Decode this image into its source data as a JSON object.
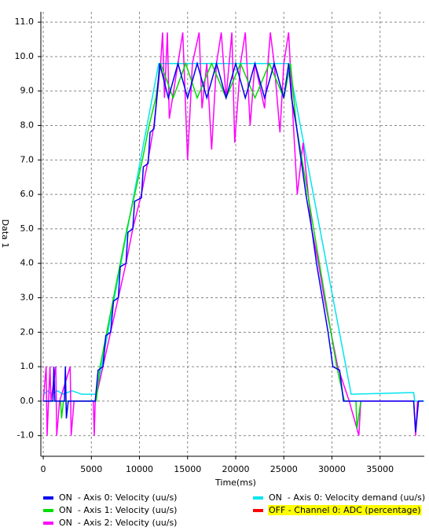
{
  "chart_data": {
    "type": "line",
    "xlabel": "Time(ms)",
    "ylabel": "Data 1",
    "xlim": [
      -250,
      39600
    ],
    "ylim": [
      -1.6,
      11.3
    ],
    "xticks": [
      0,
      5000,
      10000,
      15000,
      20000,
      25000,
      30000,
      35000
    ],
    "yticks": [
      {
        "value": -1,
        "label": "-1.0"
      },
      {
        "value": 0,
        "label": "0.0"
      },
      {
        "value": 1,
        "label": "1.0"
      },
      {
        "value": 2,
        "label": "2.0"
      },
      {
        "value": 3,
        "label": "3.0"
      },
      {
        "value": 4,
        "label": "4.0"
      },
      {
        "value": 5,
        "label": "5.0"
      },
      {
        "value": 6,
        "label": "6.0"
      },
      {
        "value": 7,
        "label": "7.0"
      },
      {
        "value": 8,
        "label": "8.0"
      },
      {
        "value": 9,
        "label": "9.0"
      },
      {
        "value": 10,
        "label": "10.0"
      },
      {
        "value": 11,
        "label": "11.0"
      }
    ],
    "grid": true,
    "series": [
      {
        "name": "ON  - Axis 0: Velocity demand (uu/s)",
        "color": "#00e5ee",
        "x": [
          0,
          500,
          800,
          1500,
          2000,
          3000,
          4000,
          5500,
          12000,
          25500,
          32000,
          38500,
          38600,
          39600
        ],
        "values": [
          0.2,
          0.3,
          0.2,
          0.3,
          0.2,
          0.3,
          0.2,
          0.2,
          9.8,
          9.8,
          0.2,
          0.25,
          0,
          0
        ]
      },
      {
        "name": "ON  - Axis 2: Velocity (uu/s)",
        "color": "#ff00ff",
        "x": [
          0,
          300,
          400,
          700,
          800,
          1300,
          1400,
          1700,
          2800,
          2900,
          3200,
          5200,
          5300,
          5400,
          6200,
          7000,
          7800,
          8600,
          9300,
          10200,
          10900,
          11500,
          12200,
          12400,
          12600,
          12900,
          13100,
          14000,
          14500,
          15000,
          15500,
          16200,
          16500,
          17000,
          17500,
          18000,
          18500,
          19000,
          19600,
          19900,
          20500,
          21000,
          21500,
          22000,
          23000,
          23600,
          24000,
          24600,
          25000,
          25500,
          26000,
          26400,
          27000,
          27900,
          28600,
          29200,
          29900,
          30600,
          31800,
          32800,
          33000,
          38500,
          38700,
          38900
        ],
        "values": [
          0,
          1,
          -1,
          1,
          0,
          1,
          -1,
          0,
          1,
          -1,
          0,
          0,
          -1,
          0,
          1,
          2,
          3,
          4,
          5,
          6,
          7,
          8,
          9.8,
          10.7,
          8.8,
          10.7,
          8.2,
          9.8,
          10.7,
          7.0,
          9.8,
          10.7,
          8.5,
          9.8,
          7.3,
          9.8,
          10.7,
          8.8,
          10.7,
          7.5,
          9.8,
          10.7,
          8.0,
          9.8,
          8.5,
          10.7,
          9.8,
          7.8,
          9.8,
          10.7,
          8.0,
          6.0,
          7.5,
          5.0,
          4.0,
          3.0,
          2.0,
          1.0,
          0,
          -1,
          0,
          0,
          -1,
          0
        ]
      },
      {
        "name": "ON  - Axis 1: Velocity (uu/s)",
        "color": "#00dd00",
        "x": [
          0,
          1800,
          1900,
          2100,
          5500,
          5900,
          6600,
          7300,
          8000,
          8700,
          9500,
          10300,
          11000,
          11700,
          12200,
          13500,
          14800,
          16000,
          17500,
          19000,
          20500,
          22000,
          23500,
          25000,
          25700,
          26300,
          26900,
          27500,
          28100,
          28700,
          29300,
          29900,
          30500,
          31300,
          32500,
          32600,
          33000
        ],
        "values": [
          0,
          0,
          -0.5,
          0,
          0,
          1,
          2,
          3,
          4,
          5,
          6,
          7,
          8,
          8.8,
          9.8,
          8.8,
          9.8,
          8.8,
          9.8,
          8.8,
          9.8,
          8.8,
          9.8,
          8.8,
          9.8,
          8.0,
          7.0,
          6.0,
          5.0,
          4.0,
          3.0,
          2.0,
          1.0,
          0,
          0,
          -0.8,
          0
        ]
      },
      {
        "name": "ON  - Axis 0: Velocity (uu/s)",
        "color": "#0000ee",
        "x": [
          0,
          1000,
          1100,
          1200,
          2200,
          2300,
          2400,
          2600,
          5400,
          5700,
          6200,
          6500,
          7000,
          7300,
          7800,
          8000,
          8600,
          8800,
          9300,
          9500,
          10200,
          10400,
          10900,
          11100,
          11500,
          11800,
          12100,
          13000,
          14000,
          15000,
          16000,
          17000,
          18000,
          19000,
          20000,
          21000,
          22000,
          23000,
          24000,
          25000,
          25500,
          25800,
          26300,
          26800,
          27300,
          27900,
          28400,
          29000,
          29600,
          30100,
          30800,
          31200,
          38500,
          38700,
          39000,
          39500
        ],
        "values": [
          0,
          0,
          1,
          0,
          0,
          1,
          -0.5,
          0,
          0,
          0.9,
          1,
          1.9,
          2,
          2.9,
          3,
          3.9,
          4,
          4.9,
          5,
          5.8,
          5.9,
          6.8,
          6.9,
          7.8,
          7.9,
          8.8,
          9.8,
          8.8,
          9.8,
          8.8,
          9.8,
          8.8,
          9.8,
          8.8,
          9.8,
          8.8,
          9.8,
          8.8,
          9.8,
          8.8,
          9.8,
          8.8,
          8.0,
          7.0,
          6.0,
          5.0,
          4.0,
          3.0,
          2.0,
          1.0,
          0.9,
          0,
          0,
          -0.9,
          0,
          0
        ]
      },
      {
        "name": "OFF - Channel 0: ADC (percentage)",
        "color": "#ff0000",
        "highlight": "#ffff00"
      }
    ]
  }
}
